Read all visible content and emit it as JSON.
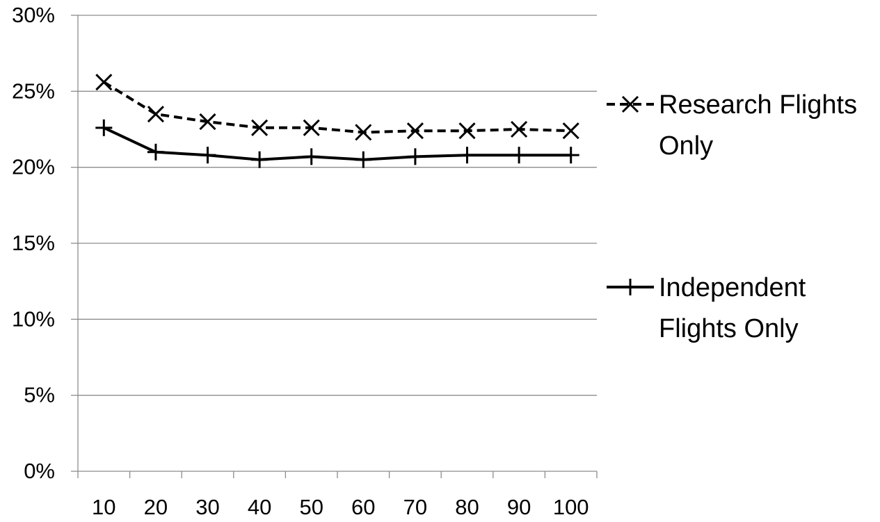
{
  "chart_data": {
    "type": "line",
    "title": "",
    "xlabel": "",
    "ylabel": "",
    "categories": [
      "10",
      "20",
      "30",
      "40",
      "50",
      "60",
      "70",
      "80",
      "90",
      "100"
    ],
    "y_ticks": [
      "0%",
      "5%",
      "10%",
      "15%",
      "20%",
      "25%",
      "30%"
    ],
    "ylim": [
      0,
      30
    ],
    "y_unit": "%",
    "grid": true,
    "legend_position": "right",
    "series": [
      {
        "name_lines": [
          "Research Flights",
          "Only"
        ],
        "marker": "x",
        "line_style": "dashed",
        "color": "#000000",
        "values": [
          25.6,
          23.5,
          23.0,
          22.6,
          22.6,
          22.3,
          22.4,
          22.4,
          22.5,
          22.4
        ]
      },
      {
        "name_lines": [
          "Independent",
          "Flights Only"
        ],
        "marker": "plus",
        "line_style": "solid",
        "color": "#000000",
        "values": [
          22.6,
          21.0,
          20.8,
          20.5,
          20.7,
          20.5,
          20.7,
          20.8,
          20.8,
          20.8
        ]
      }
    ]
  }
}
